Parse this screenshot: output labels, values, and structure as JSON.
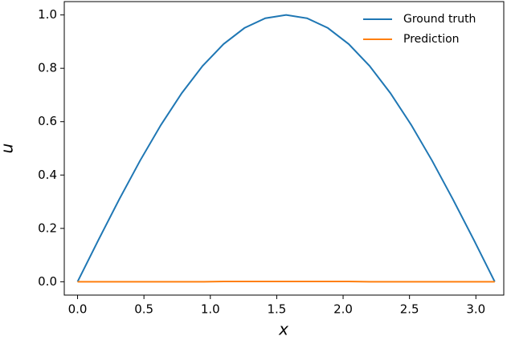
{
  "chart_data": {
    "type": "line",
    "xlabel": "x",
    "ylabel": "u",
    "x": [
      0,
      0.157,
      0.314,
      0.471,
      0.628,
      0.785,
      0.942,
      1.1,
      1.257,
      1.414,
      1.571,
      1.728,
      1.885,
      2.042,
      2.199,
      2.356,
      2.513,
      2.67,
      2.827,
      2.985,
      3.142
    ],
    "series": [
      {
        "name": "Ground truth",
        "color": "#1f77b4",
        "values": [
          0,
          0.1564,
          0.309,
          0.454,
          0.5878,
          0.7071,
          0.809,
          0.891,
          0.9511,
          0.9877,
          1,
          0.9877,
          0.9511,
          0.891,
          0.809,
          0.7071,
          0.5878,
          0.454,
          0.309,
          0.1564,
          0
        ]
      },
      {
        "name": "Prediction",
        "color": "#ff7f0e",
        "values": [
          0,
          0,
          0,
          0,
          0,
          0,
          0,
          0.001,
          0.001,
          0.001,
          0.001,
          0.001,
          0.001,
          0.001,
          0,
          0,
          0,
          0,
          0,
          0,
          0
        ]
      }
    ],
    "xlim": [
      -0.1,
      3.21
    ],
    "ylim": [
      -0.05,
      1.05
    ],
    "xticks": [
      {
        "value": 0,
        "label": "0.0"
      },
      0.5,
      {
        "value": 1,
        "label": "1.0"
      },
      1.5,
      {
        "value": 2,
        "label": "2.0"
      },
      2.5,
      {
        "value": 3,
        "label": "3.0"
      }
    ],
    "yticks": [
      {
        "value": 0,
        "label": "0.0"
      },
      0.2,
      0.4,
      0.6,
      0.8,
      {
        "value": 1,
        "label": "1.0"
      }
    ],
    "legend": "upper right",
    "grid": false
  }
}
